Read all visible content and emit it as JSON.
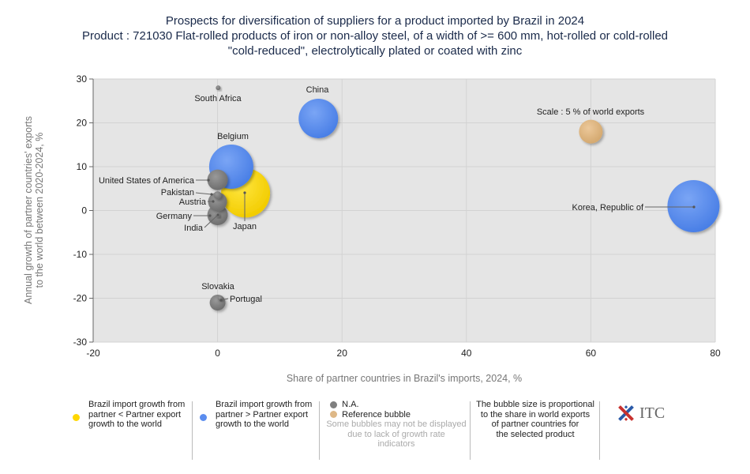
{
  "chart_data": {
    "type": "scatter",
    "title": [
      "Prospects for diversification of suppliers for a product imported by Brazil in 2024",
      "Product : 721030 Flat-rolled products of iron or non-alloy steel, of a width of >= 600 mm, hot-rolled or cold-rolled",
      "\"cold-reduced\", electrolytically plated or coated with zinc"
    ],
    "xlabel": "Share of partner countries in Brazil's imports, 2024, %",
    "ylabel": [
      "Annual growth of partner countries' exports",
      "to the world between 2020-2024, %"
    ],
    "xlim": [
      -20,
      80
    ],
    "ylim": [
      -30,
      30
    ],
    "xticks": [
      "-20",
      "0",
      "20",
      "40",
      "60",
      "80"
    ],
    "yticks": [
      "30",
      "20",
      "10",
      "0",
      "-10",
      "-20",
      "-30"
    ],
    "grid": true,
    "colors": {
      "yellow": "#ffd700",
      "blue": "#5b8def",
      "gray": "#7f7f7f",
      "reference": "#deb887"
    },
    "points": [
      {
        "name": "South Africa",
        "x": 0.1,
        "y": 28,
        "r": 3,
        "color": "gray"
      },
      {
        "name": "China",
        "x": 16.2,
        "y": 21,
        "r": 25,
        "color": "blue"
      },
      {
        "name": "Scale : 5 % of world exports",
        "x": 60,
        "y": 18,
        "r": 15,
        "color": "reference"
      },
      {
        "name": "Belgium",
        "x": 2.2,
        "y": 10,
        "r": 28,
        "color": "blue"
      },
      {
        "name": "Japan",
        "x": 4.5,
        "y": 4,
        "r": 31,
        "color": "yellow"
      },
      {
        "name": "United States of America",
        "x": 0,
        "y": 7,
        "r": 13,
        "color": "gray"
      },
      {
        "name": "Pakistan",
        "x": 0,
        "y": 3.5,
        "r": 5,
        "color": "gray"
      },
      {
        "name": "Austria",
        "x": 0,
        "y": 2,
        "r": 12,
        "color": "gray"
      },
      {
        "name": "Germany",
        "x": 0,
        "y": -1,
        "r": 13,
        "color": "gray"
      },
      {
        "name": "India",
        "x": 0,
        "y": -1,
        "r": 3,
        "color": "gray"
      },
      {
        "name": "Korea, Republic of",
        "x": 76.5,
        "y": 1,
        "r": 33,
        "color": "blue"
      },
      {
        "name": "Slovakia",
        "x": 0,
        "y": -21,
        "r": 10,
        "color": "gray"
      },
      {
        "name": "Portugal",
        "x": 0.4,
        "y": -20,
        "r": 3,
        "color": "gray"
      }
    ]
  },
  "legend": {
    "yellow_label": [
      "Brazil import growth from",
      "partner < Partner export",
      "growth to the world"
    ],
    "blue_label": [
      "Brazil import growth from",
      "partner > Partner export",
      "growth to the world"
    ],
    "na_label": "N.A.",
    "reference_label": "Reference bubble",
    "na_note": [
      "Some bubbles may not be displayed",
      "due to lack of growth rate",
      "indicators"
    ],
    "size_note": [
      "The bubble size is proportional",
      "to the share in world exports",
      "of partner countries for",
      "the selected product"
    ]
  },
  "logo": {
    "text": "ITC"
  }
}
